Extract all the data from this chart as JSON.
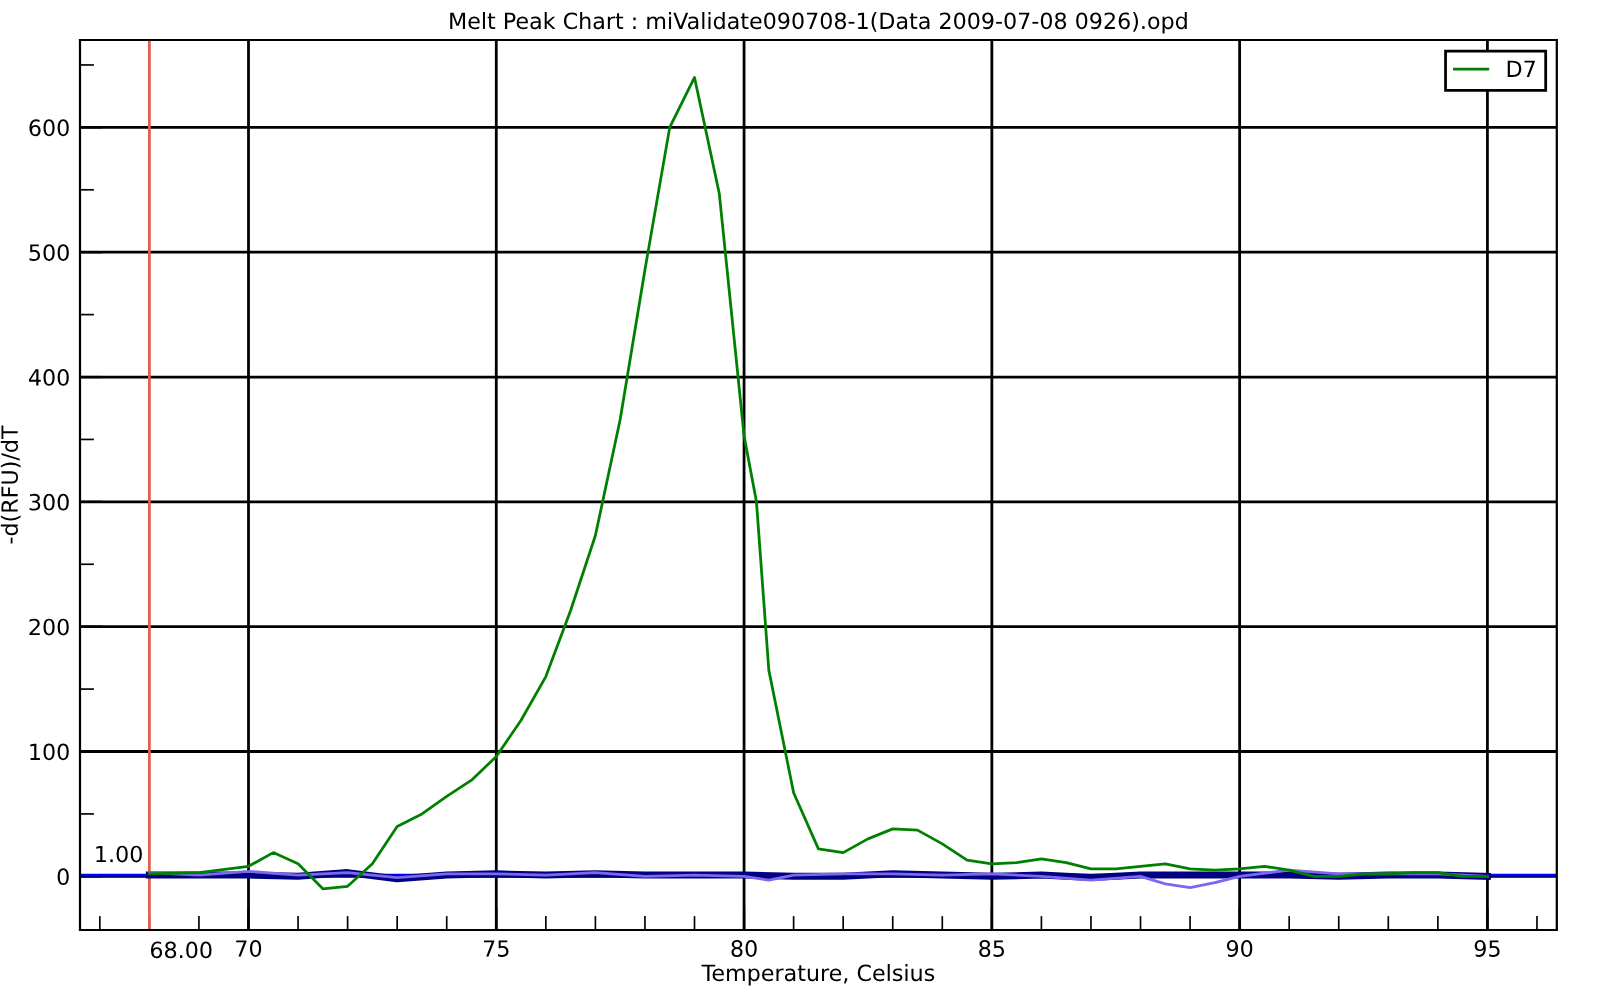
{
  "chart_data": {
    "type": "line",
    "title": "Melt Peak Chart : miValidate090708-1(Data 2009-07-08 0926).opd",
    "xlabel": "Temperature, Celsius",
    "ylabel": "-d(RFU)/dT",
    "series": [
      {
        "name": "D7",
        "color": "#008000",
        "x": [
          68,
          69,
          70,
          70.5,
          71,
          71.5,
          72,
          72.5,
          73,
          73.5,
          74,
          74.5,
          75,
          75.5,
          76,
          76.5,
          77,
          77.5,
          78,
          78.5,
          79,
          79.5,
          80,
          80.25,
          80.5,
          81,
          81.5,
          82,
          82.5,
          83,
          83.5,
          84,
          84.5,
          85,
          85.5,
          86,
          86.5,
          87,
          87.5,
          88,
          88.5,
          89,
          89.5,
          90,
          90.5,
          91,
          91.5,
          92,
          92.5,
          93,
          93.5,
          94,
          94.5,
          95
        ],
        "values": [
          2,
          3,
          8,
          19,
          10,
          -10,
          -8,
          10,
          40,
          50,
          64,
          77,
          96,
          125,
          160,
          213,
          273,
          366,
          486,
          600,
          640,
          547,
          353,
          300,
          165,
          67,
          22,
          19,
          30,
          38,
          37,
          26,
          13,
          10,
          11,
          14,
          11,
          6,
          6,
          8,
          10,
          6,
          5,
          6,
          8,
          5,
          0,
          0,
          2,
          2,
          3,
          3,
          0,
          0
        ]
      },
      {
        "color": "#7b68ee",
        "x": [
          68,
          69,
          70,
          71,
          72,
          73,
          74,
          75,
          76,
          77,
          78,
          79,
          80,
          80.5,
          81,
          82,
          83,
          84,
          85,
          86,
          87,
          88,
          88.5,
          89,
          89.5,
          90,
          91,
          92,
          93,
          94,
          95
        ],
        "values": [
          3,
          1,
          4,
          1,
          3,
          -1,
          2,
          2,
          1,
          3,
          0,
          1,
          0,
          -3,
          1,
          2,
          2,
          1,
          2,
          0,
          -3,
          0,
          -6,
          -9,
          -5,
          0,
          5,
          2,
          2,
          2,
          0
        ]
      },
      {
        "color": "#000080",
        "x": [
          68,
          69,
          70,
          71,
          72,
          73,
          74,
          75,
          76,
          77,
          78,
          79,
          80,
          81,
          82,
          83,
          84,
          85,
          86,
          87,
          88,
          89,
          90,
          91,
          92,
          93,
          94,
          95
        ],
        "values": [
          1,
          1,
          1,
          0,
          3,
          -2,
          1,
          2,
          1,
          2,
          1,
          1,
          1,
          0,
          0,
          2,
          1,
          0,
          1,
          -1,
          1,
          1,
          1,
          1,
          0,
          1,
          1,
          0
        ]
      }
    ],
    "ref_lines": [
      {
        "axis": "x",
        "value": 68,
        "label": "68.00",
        "color": "#e06050"
      },
      {
        "axis": "y",
        "value": 1,
        "label": "1.00",
        "color": "#0000ff"
      }
    ],
    "xlim": [
      66.6,
      96.4
    ],
    "ylim": [
      -43,
      670
    ],
    "xticks": [
      {
        "value": 67,
        "label": null
      },
      {
        "value": 68,
        "label": null
      },
      {
        "value": 69,
        "label": null
      },
      70,
      {
        "value": 71,
        "label": null
      },
      {
        "value": 72,
        "label": null
      },
      {
        "value": 73,
        "label": null
      },
      {
        "value": 74,
        "label": null
      },
      75,
      {
        "value": 76,
        "label": null
      },
      {
        "value": 77,
        "label": null
      },
      {
        "value": 78,
        "label": null
      },
      {
        "value": 79,
        "label": null
      },
      80,
      {
        "value": 81,
        "label": null
      },
      {
        "value": 82,
        "label": null
      },
      {
        "value": 83,
        "label": null
      },
      {
        "value": 84,
        "label": null
      },
      85,
      {
        "value": 86,
        "label": null
      },
      {
        "value": 87,
        "label": null
      },
      {
        "value": 88,
        "label": null
      },
      {
        "value": 89,
        "label": null
      },
      90,
      {
        "value": 91,
        "label": null
      },
      {
        "value": 92,
        "label": null
      },
      {
        "value": 93,
        "label": null
      },
      {
        "value": 94,
        "label": null
      },
      95,
      {
        "value": 96,
        "label": null
      }
    ],
    "yticks": [
      0,
      {
        "value": 50,
        "label": null
      },
      100,
      {
        "value": 150,
        "label": null
      },
      200,
      {
        "value": 250,
        "label": null
      },
      300,
      {
        "value": 350,
        "label": null
      },
      400,
      {
        "value": 450,
        "label": null
      },
      500,
      {
        "value": 550,
        "label": null
      },
      600,
      {
        "value": 650,
        "label": null
      }
    ],
    "grid": true,
    "legend": "top right",
    "marker": "none",
    "line_style": "solid"
  }
}
